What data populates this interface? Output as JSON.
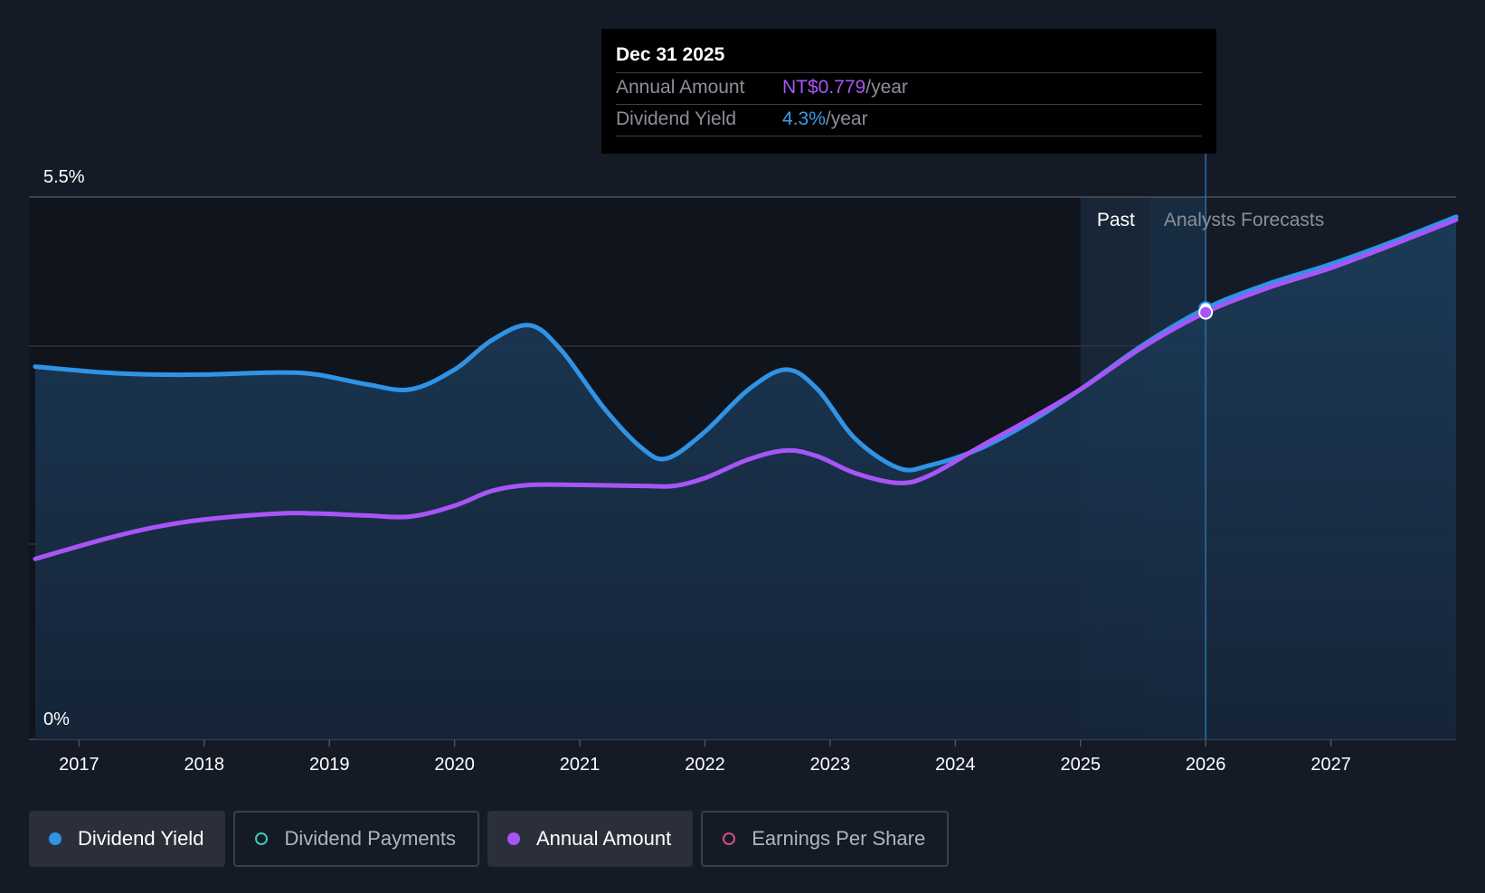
{
  "tooltip": {
    "date": "Dec 31 2025",
    "annual_label": "Annual Amount",
    "annual_value": "NT$0.779",
    "annual_unit": "/year",
    "yield_label": "Dividend Yield",
    "yield_value": "4.3%",
    "yield_unit": "/year"
  },
  "legend": [
    {
      "label": "Dividend Yield",
      "active": true,
      "color": "#2f93e6",
      "filled": true
    },
    {
      "label": "Dividend Payments",
      "active": false,
      "color": "#3ec6b8",
      "filled": false
    },
    {
      "label": "Annual Amount",
      "active": true,
      "color": "#a855f7",
      "filled": true
    },
    {
      "label": "Earnings Per Share",
      "active": false,
      "color": "#d64b86",
      "filled": false
    }
  ],
  "colors": {
    "background": "#151b26",
    "yield": "#2f93e6",
    "annual": "#a855f7",
    "tooltip_bg": "#000000"
  },
  "chart_data": {
    "type": "area",
    "ylim": [
      0,
      5.5
    ],
    "ytick_labels": [
      "5.5%",
      "0%"
    ],
    "xlim": [
      2016.6,
      2028.0
    ],
    "x_ticks": [
      2017,
      2018,
      2019,
      2020,
      2021,
      2022,
      2023,
      2024,
      2025,
      2026,
      2027
    ],
    "x_tick_labels": [
      "2017",
      "2018",
      "2019",
      "2020",
      "2021",
      "2022",
      "2023",
      "2024",
      "2025",
      "2026",
      "2027"
    ],
    "regions": {
      "past_label": "Past",
      "forecast_label": "Analysts Forecasts",
      "past_start": 2025.0,
      "forecast_start": 2025.55,
      "forecast_line": 2026.0
    },
    "highlight_x": 2026.0,
    "series": [
      {
        "name": "Dividend Yield",
        "x": [
          2016.65,
          2017.2,
          2017.6,
          2018.0,
          2018.6,
          2018.9,
          2019.3,
          2019.65,
          2020.0,
          2020.3,
          2020.6,
          2020.85,
          2021.2,
          2021.5,
          2021.7,
          2022.0,
          2022.35,
          2022.65,
          2022.9,
          2023.2,
          2023.55,
          2023.8,
          2024.2,
          2024.6,
          2025.0,
          2025.5,
          2026.0,
          2026.5,
          2027.0,
          2027.5,
          2028.0
        ],
        "y": [
          3.78,
          3.72,
          3.7,
          3.7,
          3.72,
          3.7,
          3.6,
          3.55,
          3.75,
          4.05,
          4.2,
          3.95,
          3.35,
          2.95,
          2.85,
          3.12,
          3.55,
          3.75,
          3.55,
          3.05,
          2.75,
          2.78,
          2.95,
          3.22,
          3.55,
          4.0,
          4.37,
          4.62,
          4.82,
          5.05,
          5.3
        ]
      },
      {
        "name": "Annual Amount",
        "x": [
          2016.65,
          2017.2,
          2017.6,
          2018.0,
          2018.6,
          2018.9,
          2019.3,
          2019.65,
          2020.0,
          2020.3,
          2020.6,
          2021.0,
          2021.5,
          2021.75,
          2022.0,
          2022.35,
          2022.65,
          2022.9,
          2023.2,
          2023.55,
          2023.8,
          2024.2,
          2024.6,
          2025.0,
          2025.5,
          2026.0,
          2026.5,
          2027.0,
          2027.5,
          2028.0
        ],
        "y": [
          1.83,
          2.03,
          2.15,
          2.23,
          2.29,
          2.29,
          2.27,
          2.26,
          2.37,
          2.52,
          2.58,
          2.58,
          2.57,
          2.57,
          2.65,
          2.84,
          2.93,
          2.87,
          2.7,
          2.6,
          2.68,
          2.97,
          3.25,
          3.55,
          3.98,
          4.33,
          4.58,
          4.78,
          5.02,
          5.27
        ]
      }
    ]
  }
}
